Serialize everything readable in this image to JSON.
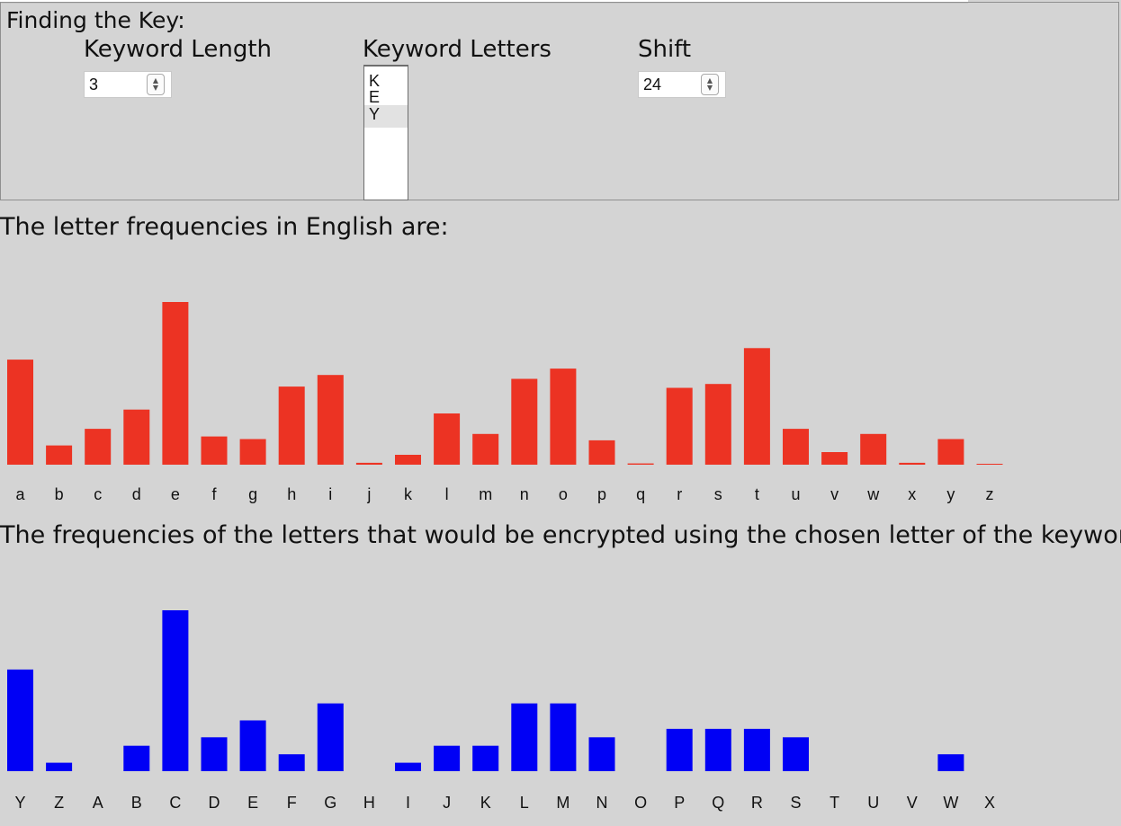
{
  "key_panel": {
    "legend": "Finding the Key:",
    "keyword_length": {
      "label": "Keyword Length",
      "value": "3",
      "icon": "stepper-icon"
    },
    "keyword_letters": {
      "label": "Keyword Letters",
      "options": [
        "K",
        "E",
        "Y"
      ],
      "selected": "Y"
    },
    "shift": {
      "label": "Shift",
      "value": "24",
      "icon": "stepper-icon"
    }
  },
  "english_caption": "The letter frequencies in English are:",
  "encrypted_caption": "The frequencies of the letters that would be encrypted using the chosen letter of the keyword:",
  "colors": {
    "english_bars": "#ec3323",
    "encrypted_bars": "#0000f5",
    "background": "#d4d4d4"
  },
  "chart_data": [
    {
      "type": "bar",
      "categories": [
        "a",
        "b",
        "c",
        "d",
        "e",
        "f",
        "g",
        "h",
        "i",
        "j",
        "k",
        "l",
        "m",
        "n",
        "o",
        "p",
        "q",
        "r",
        "s",
        "t",
        "u",
        "v",
        "w",
        "x",
        "y",
        "z"
      ],
      "values": [
        8.2,
        1.5,
        2.8,
        4.3,
        12.7,
        2.2,
        2.0,
        6.1,
        7.0,
        0.15,
        0.77,
        4.0,
        2.4,
        6.7,
        7.5,
        1.9,
        0.1,
        6.0,
        6.3,
        9.1,
        2.8,
        0.98,
        2.4,
        0.15,
        2.0,
        0.07
      ],
      "color": "#ec3323",
      "grid": false
    },
    {
      "type": "bar",
      "categories": [
        "Y",
        "Z",
        "A",
        "B",
        "C",
        "D",
        "E",
        "F",
        "G",
        "H",
        "I",
        "J",
        "K",
        "L",
        "M",
        "N",
        "O",
        "P",
        "Q",
        "R",
        "S",
        "T",
        "U",
        "V",
        "W",
        "X"
      ],
      "values": [
        12,
        1,
        0,
        3,
        19,
        4,
        6,
        2,
        8,
        0,
        1,
        3,
        3,
        8,
        8,
        4,
        0,
        5,
        5,
        5,
        4,
        0,
        0,
        0,
        2,
        0
      ],
      "color": "#0000f5",
      "grid": false
    }
  ]
}
